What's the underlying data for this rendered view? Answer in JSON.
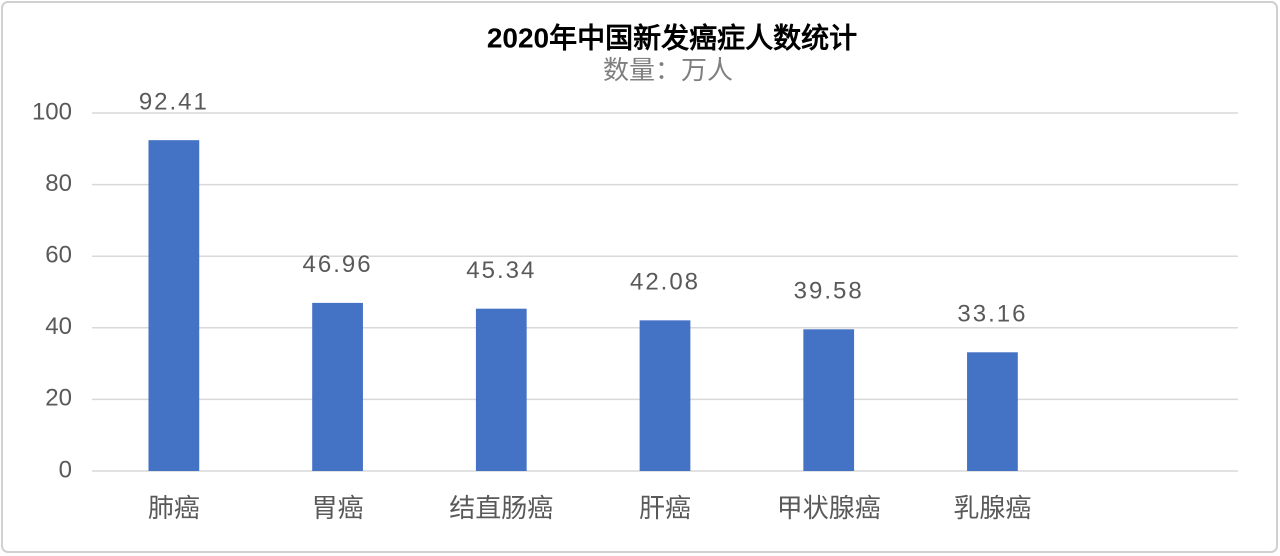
{
  "chart_data": {
    "type": "bar",
    "title": "2020年中国新发癌症人数统计",
    "subtitle": "数量：万人",
    "categories": [
      "肺癌",
      "胃癌",
      "结直肠癌",
      "肝癌",
      "甲状腺癌",
      "乳腺癌",
      null
    ],
    "values": [
      92.41,
      46.96,
      45.34,
      42.08,
      39.58,
      33.16,
      null
    ],
    "color": "#4472c4",
    "ylim": [
      0,
      100
    ],
    "yticks": [
      0,
      20,
      40,
      60,
      80,
      100
    ],
    "grid": true
  }
}
